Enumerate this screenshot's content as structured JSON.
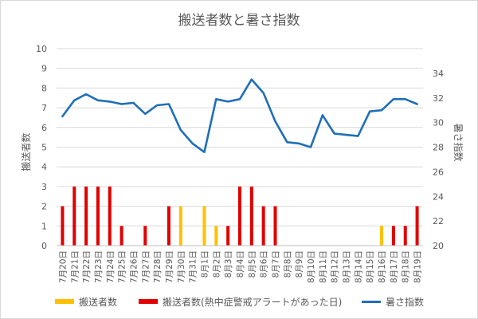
{
  "chart_data": {
    "type": "bar",
    "title": "搬送者数と暑さ指数",
    "ylabel": "搬送者数",
    "y2label": "暑さ指数",
    "ylim": [
      0,
      10
    ],
    "y2lim": [
      20,
      36
    ],
    "yticks": [
      0,
      1,
      2,
      3,
      4,
      5,
      6,
      7,
      8,
      9,
      10
    ],
    "y2ticks": [
      20,
      22,
      24,
      26,
      28,
      30,
      32,
      34
    ],
    "grid": true,
    "legend_position": "bottom",
    "categories": [
      "7月20日",
      "7月21日",
      "7月22日",
      "7月23日",
      "7月24日",
      "7月25日",
      "7月26日",
      "7月27日",
      "7月28日",
      "7月29日",
      "7月30日",
      "7月31日",
      "8月1日",
      "8月2日",
      "8月3日",
      "8月4日",
      "8月5日",
      "8月6日",
      "8月7日",
      "8月8日",
      "8月9日",
      "8月10日",
      "8月11日",
      "8月12日",
      "8月13日",
      "8月14日",
      "8月15日",
      "8月16日",
      "8月17日",
      "8月18日",
      "8月19日"
    ],
    "series": [
      {
        "name": "搬送者数",
        "type": "bar",
        "color": "#FFC000",
        "values": [
          0,
          0,
          0,
          0,
          0,
          0,
          0,
          0,
          0,
          0,
          2,
          0,
          2,
          1,
          0,
          0,
          0,
          0,
          0,
          0,
          0,
          0,
          0,
          0,
          0,
          0,
          0,
          1,
          0,
          0,
          0
        ]
      },
      {
        "name": "搬送者数(熱中症警戒アラートがあった日)",
        "type": "bar",
        "color": "#E00000",
        "values": [
          2,
          3,
          3,
          3,
          3,
          1,
          0,
          1,
          0,
          2,
          0,
          0,
          0,
          0,
          1,
          3,
          3,
          2,
          2,
          0,
          0,
          0,
          0,
          0,
          0,
          0,
          0,
          0,
          1,
          1,
          2
        ]
      },
      {
        "name": "暑さ指数",
        "type": "line",
        "axis": "right",
        "color": "#1F6FB8",
        "values": [
          30.5,
          31.8,
          32.3,
          31.8,
          31.7,
          31.5,
          31.6,
          30.7,
          31.4,
          31.5,
          29.4,
          28.3,
          27.6,
          31.9,
          31.7,
          31.9,
          33.5,
          32.4,
          30.1,
          28.4,
          28.3,
          28.0,
          30.6,
          29.1,
          29.0,
          28.9,
          30.9,
          31.0,
          31.9,
          31.9,
          31.5
        ]
      }
    ]
  }
}
